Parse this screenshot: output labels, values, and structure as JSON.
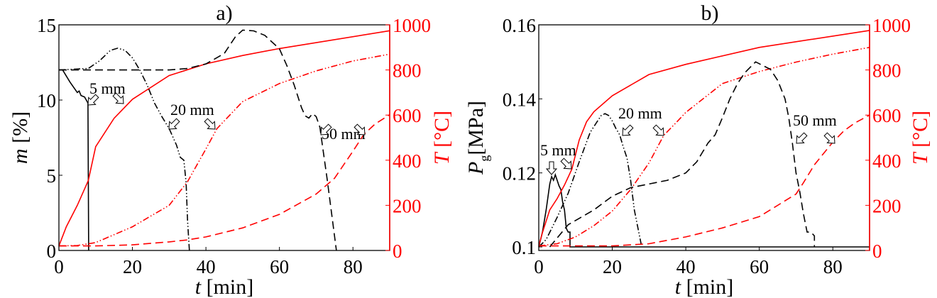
{
  "colors": {
    "temperature": "#ff0000",
    "moisture": "#000000"
  },
  "chart_data": [
    {
      "type": "line",
      "title": "a)",
      "xlabel": "t [min]",
      "ylabel": "m [%]",
      "y2label": "T [°C]",
      "xlim": [
        0,
        90
      ],
      "ylim": [
        0,
        15
      ],
      "y2lim": [
        0,
        1000
      ],
      "xticks": [
        "0",
        "20",
        "40",
        "60",
        "80"
      ],
      "yticks": [
        "0",
        "5",
        "10",
        "15"
      ],
      "y2ticks": [
        "0",
        "200",
        "400",
        "600",
        "800",
        "1000"
      ],
      "annotations": [
        "5 mm",
        "20 mm",
        "50 mm"
      ],
      "series": [
        {
          "name": "m 5 mm",
          "axis": "left",
          "style": "solid",
          "color": "#000000",
          "x": [
            0,
            1,
            3,
            5,
            5.5,
            6,
            7,
            7.9,
            8.0,
            8.1
          ],
          "y": [
            12,
            12,
            11.2,
            10.5,
            10.6,
            10.3,
            10.2,
            9.8,
            5,
            0
          ]
        },
        {
          "name": "T 5 mm",
          "axis": "right",
          "style": "solid",
          "color": "#ff0000",
          "x": [
            0,
            2,
            5,
            8,
            10,
            15,
            20,
            30,
            40,
            50,
            60,
            90
          ],
          "y": [
            20,
            105,
            200,
            310,
            460,
            586,
            670,
            775,
            827,
            864,
            895,
            974
          ]
        },
        {
          "name": "m 20 mm",
          "axis": "left",
          "style": "dashdotdot",
          "color": "#000000",
          "x": [
            0,
            8,
            11,
            14,
            16,
            18,
            20,
            22,
            24,
            26,
            28,
            30,
            32,
            33,
            34,
            34.6,
            35,
            35.5
          ],
          "y": [
            12,
            12.1,
            12.6,
            13.3,
            13.45,
            13.3,
            12.8,
            12,
            11,
            9.8,
            8.9,
            8.1,
            7,
            6.2,
            6.0,
            4.5,
            2,
            0
          ]
        },
        {
          "name": "T 20 mm",
          "axis": "right",
          "style": "dashdotdot",
          "color": "#ff0000",
          "x": [
            0,
            5,
            10,
            20,
            30,
            35,
            40,
            43,
            50,
            60,
            70,
            80,
            90
          ],
          "y": [
            20,
            22,
            35,
            105,
            200,
            305,
            450,
            540,
            660,
            740,
            796,
            840,
            870
          ]
        },
        {
          "name": "m 50 mm",
          "axis": "left",
          "style": "dashed",
          "color": "#000000",
          "x": [
            0,
            30,
            35,
            40,
            45,
            48,
            50,
            53,
            56,
            60,
            62,
            64,
            66,
            67,
            68,
            69,
            70,
            71,
            73,
            75.5
          ],
          "y": [
            12,
            12,
            12.1,
            12.4,
            13.1,
            14.2,
            14.65,
            14.6,
            14.3,
            13.4,
            12.3,
            11,
            9.5,
            8.95,
            8.8,
            9.1,
            8.9,
            8.2,
            4.7,
            0
          ]
        },
        {
          "name": "T 50 mm",
          "axis": "right",
          "style": "dashed",
          "color": "#ff0000",
          "x": [
            0,
            10,
            20,
            30,
            35,
            40,
            50,
            60,
            70,
            75,
            80,
            83,
            86,
            90
          ],
          "y": [
            20,
            20,
            25,
            38,
            47,
            60,
            100,
            160,
            250,
            320,
            440,
            515,
            560,
            602
          ]
        }
      ]
    },
    {
      "type": "line",
      "title": "b)",
      "xlabel": "t [min]",
      "ylabel": "Pg [MPa]",
      "ylabel_main": "P",
      "ylabel_sub": "g",
      "ylabel_unit": "[MPa]",
      "y2label": "T [°C]",
      "xlim": [
        0,
        90
      ],
      "ylim": [
        0.1,
        0.16
      ],
      "y2lim": [
        0,
        1000
      ],
      "xticks": [
        "0",
        "20",
        "40",
        "60",
        "80"
      ],
      "yticks": [
        "0.1",
        "0.12",
        "0.14",
        "0.16"
      ],
      "y2ticks": [
        "0",
        "200",
        "400",
        "600",
        "800",
        "1000"
      ],
      "annotations": [
        "5 mm",
        "20 mm",
        "50 mm"
      ],
      "series": [
        {
          "name": "Pg 5 mm",
          "axis": "left",
          "style": "solid",
          "color": "#000000",
          "x": [
            0,
            1,
            2,
            3,
            3.5,
            4,
            4.5,
            5,
            5.5,
            6,
            6.5,
            7,
            7.5,
            8,
            8.5,
            8.5,
            90
          ],
          "y": [
            0.1,
            0.104,
            0.11,
            0.117,
            0.119,
            0.118,
            0.1195,
            0.118,
            0.1165,
            0.1155,
            0.112,
            0.11,
            0.105,
            0.104,
            0.104,
            0.1,
            0.1
          ]
        },
        {
          "name": "T 5 mm",
          "axis": "right",
          "style": "solid",
          "color": "#ff0000",
          "x": [
            0,
            1,
            3,
            5,
            7,
            9,
            11,
            13,
            15,
            20,
            30,
            40,
            60,
            90
          ],
          "y": [
            20,
            80,
            180,
            230,
            290,
            360,
            490,
            570,
            615,
            686,
            780,
            825,
            900,
            975
          ]
        },
        {
          "name": "Pg 20 mm",
          "axis": "left",
          "style": "dashdotdot",
          "color": "#000000",
          "x": [
            0,
            2,
            5,
            8,
            11,
            14,
            16,
            17,
            18,
            19,
            20,
            21,
            22,
            23,
            24,
            25,
            26,
            27,
            28
          ],
          "y": [
            0.1,
            0.102,
            0.108,
            0.1145,
            0.123,
            0.131,
            0.134,
            0.1355,
            0.136,
            0.1355,
            0.134,
            0.132,
            0.1303,
            0.127,
            0.124,
            0.118,
            0.11,
            0.105,
            0.1
          ]
        },
        {
          "name": "T 20 mm",
          "axis": "right",
          "style": "dashdotdot",
          "color": "#ff0000",
          "x": [
            0,
            5,
            10,
            15,
            20,
            25,
            30,
            34,
            37.5,
            40,
            50,
            60,
            70,
            80,
            90
          ],
          "y": [
            20,
            30,
            60,
            110,
            175,
            270,
            388,
            510,
            569,
            612,
            740,
            793,
            835,
            870,
            900
          ]
        },
        {
          "name": "Pg 50 mm",
          "axis": "left",
          "style": "dashed",
          "color": "#000000",
          "x": [
            3,
            8,
            15,
            20,
            25,
            30,
            35,
            40,
            43,
            46,
            48,
            50,
            52,
            54,
            56,
            58,
            59,
            61,
            63,
            65,
            67,
            68,
            69,
            70,
            71,
            72,
            73,
            74,
            75,
            75
          ],
          "y": [
            0.1,
            0.106,
            0.11,
            0.1137,
            0.116,
            0.117,
            0.118,
            0.12,
            0.123,
            0.128,
            0.1303,
            0.135,
            0.14,
            0.144,
            0.147,
            0.149,
            0.15,
            0.149,
            0.148,
            0.145,
            0.14,
            0.135,
            0.128,
            0.12,
            0.115,
            0.109,
            0.104,
            0.104,
            0.103,
            0.1
          ]
        },
        {
          "name": "T 50 mm",
          "axis": "right",
          "style": "dashed",
          "color": "#ff0000",
          "x": [
            0,
            10,
            20,
            30,
            40,
            50,
            60,
            70,
            72,
            75,
            80,
            83,
            86,
            90
          ],
          "y": [
            20,
            20,
            20,
            30,
            60,
            100,
            150,
            250,
            300,
            380,
            480,
            530,
            565,
            600
          ]
        }
      ]
    }
  ]
}
